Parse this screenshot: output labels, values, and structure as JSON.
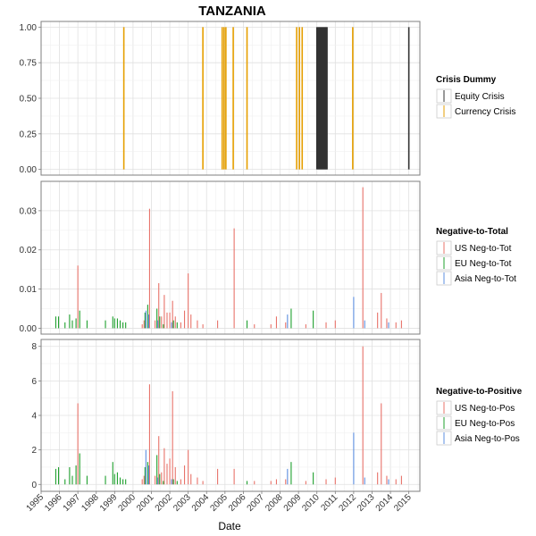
{
  "chart_data": {
    "type": "bar",
    "title": "TANZANIA",
    "xlabel": "Date",
    "x_ticks": [
      "1995",
      "1996",
      "1997",
      "1998",
      "1999",
      "2000",
      "2001",
      "2002",
      "2003",
      "2004",
      "2005",
      "2006",
      "2007",
      "2008",
      "2009",
      "2010",
      "2011",
      "2012",
      "2013",
      "2014",
      "2015"
    ],
    "xlim": [
      1995,
      2015.6
    ],
    "grid": true,
    "panels": [
      {
        "id": "crisis",
        "ylim": [
          -0.04,
          1.04
        ],
        "y_ticks": [
          "0.00",
          "0.25",
          "0.50",
          "0.75",
          "1.00"
        ],
        "y_tick_values": [
          0,
          0.25,
          0.5,
          0.75,
          1.0
        ],
        "legend_title": "Crisis Dummy",
        "series": [
          {
            "name": "Equity Crisis",
            "color": "#333333",
            "points": [
              [
                2010.0,
                1
              ],
              [
                2010.05,
                1
              ],
              [
                2010.1,
                1
              ],
              [
                2010.15,
                1
              ],
              [
                2010.2,
                1
              ],
              [
                2010.25,
                1
              ],
              [
                2010.3,
                1
              ],
              [
                2010.35,
                1
              ],
              [
                2010.4,
                1
              ],
              [
                2010.45,
                1
              ],
              [
                2010.5,
                1
              ],
              [
                2010.55,
                1
              ],
              [
                2015.0,
                1
              ]
            ]
          },
          {
            "name": "Currency Crisis",
            "color": "#E69F00",
            "points": [
              [
                1999.5,
                1
              ],
              [
                2003.8,
                1
              ],
              [
                2004.85,
                1
              ],
              [
                2004.95,
                1
              ],
              [
                2005.05,
                1
              ],
              [
                2005.45,
                1
              ],
              [
                2006.2,
                1
              ],
              [
                2008.9,
                1
              ],
              [
                2009.05,
                1
              ],
              [
                2009.2,
                1
              ],
              [
                2011.95,
                1
              ]
            ]
          }
        ]
      },
      {
        "id": "negtotal",
        "ylim": [
          -0.0015,
          0.0375
        ],
        "y_ticks": [
          "0.00",
          "0.01",
          "0.02",
          "0.03"
        ],
        "y_tick_values": [
          0,
          0.01,
          0.02,
          0.03
        ],
        "legend_title": "Negative-to-Total",
        "series": [
          {
            "name": "US Neg-to-Tot",
            "color": "#E8736A",
            "points": [
              [
                1997.0,
                0.016
              ],
              [
                2000.5,
                0.001
              ],
              [
                2000.6,
                0.002
              ],
              [
                2000.9,
                0.0305
              ],
              [
                2001.2,
                0.002
              ],
              [
                2001.4,
                0.0115
              ],
              [
                2001.55,
                0.003
              ],
              [
                2001.7,
                0.0085
              ],
              [
                2001.85,
                0.004
              ],
              [
                2002.0,
                0.004
              ],
              [
                2002.15,
                0.007
              ],
              [
                2002.3,
                0.003
              ],
              [
                2002.6,
                0.0015
              ],
              [
                2002.8,
                0.0045
              ],
              [
                2003.0,
                0.014
              ],
              [
                2003.15,
                0.0035
              ],
              [
                2003.5,
                0.002
              ],
              [
                2003.8,
                0.001
              ],
              [
                2004.6,
                0.002
              ],
              [
                2005.5,
                0.0255
              ],
              [
                2006.6,
                0.001
              ],
              [
                2007.5,
                0.001
              ],
              [
                2007.8,
                0.003
              ],
              [
                2008.3,
                0.0015
              ],
              [
                2009.4,
                0.001
              ],
              [
                2010.5,
                0.0015
              ],
              [
                2011.0,
                0.002
              ],
              [
                2012.5,
                0.036
              ],
              [
                2013.3,
                0.004
              ],
              [
                2013.5,
                0.009
              ],
              [
                2013.8,
                0.0025
              ],
              [
                2014.3,
                0.0015
              ],
              [
                2014.6,
                0.002
              ]
            ]
          },
          {
            "name": "EU Neg-to-Tot",
            "color": "#1FA02E",
            "points": [
              [
                1995.8,
                0.003
              ],
              [
                1995.95,
                0.003
              ],
              [
                1996.3,
                0.0015
              ],
              [
                1996.55,
                0.0035
              ],
              [
                1996.7,
                0.002
              ],
              [
                1996.9,
                0.0025
              ],
              [
                1997.1,
                0.0045
              ],
              [
                1997.5,
                0.002
              ],
              [
                1998.5,
                0.002
              ],
              [
                1998.9,
                0.003
              ],
              [
                1999.0,
                0.0025
              ],
              [
                1999.15,
                0.0025
              ],
              [
                1999.3,
                0.002
              ],
              [
                1999.45,
                0.0015
              ],
              [
                1999.6,
                0.0015
              ],
              [
                2000.65,
                0.004
              ],
              [
                2000.8,
                0.006
              ],
              [
                2001.3,
                0.005
              ],
              [
                2001.45,
                0.003
              ],
              [
                2001.65,
                0.001
              ],
              [
                2002.2,
                0.002
              ],
              [
                2002.4,
                0.0015
              ],
              [
                2006.2,
                0.002
              ],
              [
                2008.6,
                0.005
              ],
              [
                2009.8,
                0.0045
              ]
            ]
          },
          {
            "name": "Asia Neg-to-Tot",
            "color": "#5E8FE0",
            "points": [
              [
                2000.7,
                0.0045
              ],
              [
                2000.85,
                0.0035
              ],
              [
                2001.35,
                0.002
              ],
              [
                2002.1,
                0.0015
              ],
              [
                2008.4,
                0.0035
              ],
              [
                2012.0,
                0.008
              ],
              [
                2012.6,
                0.002
              ],
              [
                2013.9,
                0.0015
              ]
            ]
          }
        ]
      },
      {
        "id": "negpos",
        "ylim": [
          -0.4,
          8.4
        ],
        "y_ticks": [
          "0",
          "2",
          "4",
          "6",
          "8"
        ],
        "y_tick_values": [
          0,
          2,
          4,
          6,
          8
        ],
        "legend_title": "Negative-to-Positive",
        "series": [
          {
            "name": "US Neg-to-Pos",
            "color": "#E8736A",
            "points": [
              [
                1997.0,
                4.7
              ],
              [
                2000.5,
                0.3
              ],
              [
                2000.6,
                0.5
              ],
              [
                2000.9,
                5.8
              ],
              [
                2001.2,
                0.5
              ],
              [
                2001.4,
                2.8
              ],
              [
                2001.55,
                0.7
              ],
              [
                2001.7,
                2.1
              ],
              [
                2001.85,
                1.2
              ],
              [
                2002.0,
                1.5
              ],
              [
                2002.15,
                5.4
              ],
              [
                2002.3,
                1.0
              ],
              [
                2002.6,
                0.3
              ],
              [
                2002.8,
                1.1
              ],
              [
                2003.0,
                2.0
              ],
              [
                2003.15,
                0.6
              ],
              [
                2003.5,
                0.4
              ],
              [
                2003.8,
                0.2
              ],
              [
                2004.6,
                0.9
              ],
              [
                2005.5,
                0.9
              ],
              [
                2006.6,
                0.2
              ],
              [
                2007.5,
                0.2
              ],
              [
                2007.8,
                0.3
              ],
              [
                2008.3,
                0.3
              ],
              [
                2009.4,
                0.2
              ],
              [
                2010.5,
                0.3
              ],
              [
                2011.0,
                0.4
              ],
              [
                2012.5,
                8.0
              ],
              [
                2013.3,
                0.7
              ],
              [
                2013.5,
                4.7
              ],
              [
                2013.8,
                0.5
              ],
              [
                2014.3,
                0.3
              ],
              [
                2014.6,
                0.5
              ]
            ]
          },
          {
            "name": "EU Neg-to-Pos",
            "color": "#1FA02E",
            "points": [
              [
                1995.8,
                0.9
              ],
              [
                1995.95,
                1.0
              ],
              [
                1996.3,
                0.3
              ],
              [
                1996.55,
                1.0
              ],
              [
                1996.7,
                0.5
              ],
              [
                1996.9,
                1.1
              ],
              [
                1997.1,
                1.8
              ],
              [
                1997.5,
                0.5
              ],
              [
                1998.5,
                0.5
              ],
              [
                1998.9,
                1.3
              ],
              [
                1999.0,
                0.6
              ],
              [
                1999.15,
                0.7
              ],
              [
                1999.3,
                0.4
              ],
              [
                1999.45,
                0.3
              ],
              [
                1999.6,
                0.3
              ],
              [
                2000.65,
                1.0
              ],
              [
                2000.8,
                1.3
              ],
              [
                2001.3,
                1.7
              ],
              [
                2001.45,
                0.6
              ],
              [
                2001.65,
                0.2
              ],
              [
                2002.2,
                0.3
              ],
              [
                2002.4,
                0.2
              ],
              [
                2006.2,
                0.2
              ],
              [
                2008.6,
                1.3
              ],
              [
                2009.8,
                0.7
              ]
            ]
          },
          {
            "name": "Asia Neg-to-Pos",
            "color": "#5E8FE0",
            "points": [
              [
                2000.7,
                2.0
              ],
              [
                2000.85,
                1.1
              ],
              [
                2001.35,
                0.4
              ],
              [
                2002.1,
                0.3
              ],
              [
                2008.4,
                0.9
              ],
              [
                2012.0,
                3.0
              ],
              [
                2012.6,
                0.4
              ],
              [
                2013.9,
                0.3
              ]
            ]
          }
        ]
      }
    ]
  }
}
